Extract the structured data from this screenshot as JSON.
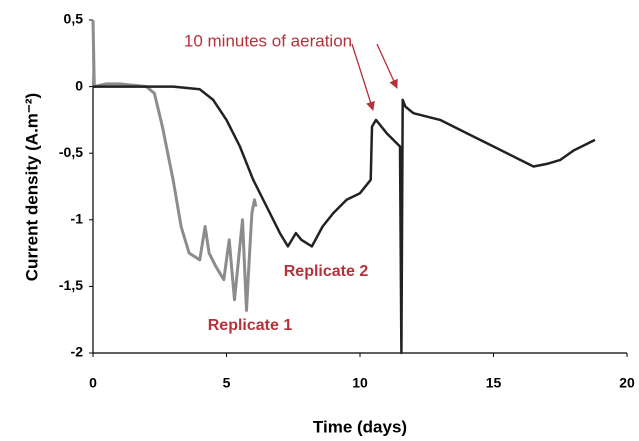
{
  "chart_data": {
    "type": "line",
    "x_label": "Time (days)",
    "y_label": "Current density (A.m⁻²)",
    "annotations": [
      "10 minutes of aeration",
      "Replicate 1",
      "Replicate 2"
    ],
    "annotation_color": "#b5323a",
    "xlim": [
      0,
      20
    ],
    "xticks": [
      0,
      5,
      10,
      15,
      20
    ],
    "ylim": [
      -2,
      0.5
    ],
    "yticks": [
      -2,
      {
        "value": -1.5,
        "label": "-1,5"
      },
      -1,
      {
        "value": -0.5,
        "label": "-0,5"
      },
      0,
      {
        "value": 0.5,
        "label": "0,5"
      }
    ],
    "series": [
      {
        "name": "Replicate 1",
        "color": "#8c8c8c",
        "x": [
          0,
          0.05,
          0.5,
          1,
          1.5,
          2,
          2.3,
          2.6,
          3,
          3.3,
          3.6,
          4,
          4.2,
          4.35,
          4.6,
          4.9,
          5.1,
          5.3,
          5.45,
          5.6,
          5.75,
          5.85,
          5.95,
          6.05,
          6.1
        ],
        "values": [
          0.5,
          0,
          0.02,
          0.02,
          0.01,
          0,
          -0.05,
          -0.3,
          -0.7,
          -1.05,
          -1.25,
          -1.3,
          -1.05,
          -1.25,
          -1.35,
          -1.45,
          -1.15,
          -1.6,
          -1.3,
          -1.0,
          -1.68,
          -1.3,
          -0.95,
          -0.85,
          -0.9
        ]
      },
      {
        "name": "Replicate 2",
        "color": "#222222",
        "x": [
          0,
          1,
          2,
          3,
          4,
          4.5,
          5,
          5.5,
          6,
          6.5,
          7,
          7.3,
          7.6,
          7.8,
          8.2,
          8.6,
          9,
          9.5,
          10,
          10.4,
          10.45,
          10.6,
          11,
          11.5,
          11.55,
          11.6,
          11.7,
          12,
          13,
          14,
          15,
          16,
          16.5,
          17,
          17.5,
          18,
          18.8
        ],
        "values": [
          0,
          0,
          0,
          0,
          -0.02,
          -0.1,
          -0.25,
          -0.45,
          -0.7,
          -0.9,
          -1.1,
          -1.2,
          -1.1,
          -1.15,
          -1.2,
          -1.05,
          -0.95,
          -0.85,
          -0.8,
          -0.7,
          -0.3,
          -0.25,
          -0.35,
          -0.45,
          -2,
          -0.1,
          -0.15,
          -0.2,
          -0.25,
          -0.35,
          -0.45,
          -0.55,
          -0.6,
          -0.58,
          -0.55,
          -0.48,
          -0.4
        ]
      }
    ]
  }
}
